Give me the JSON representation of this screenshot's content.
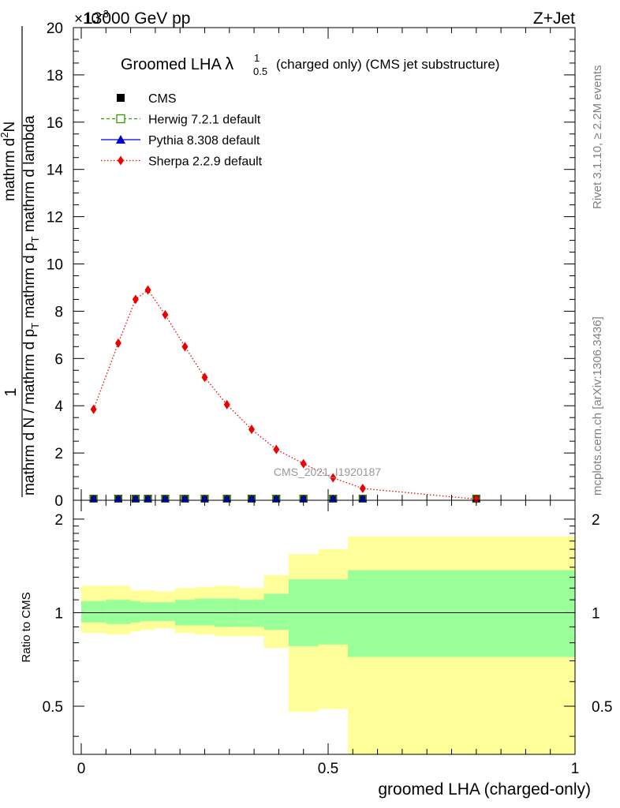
{
  "header": {
    "energy_label": "13000 GeV pp",
    "process_label": "Z+Jet",
    "exponent_label": "×10",
    "exponent_sup": "-3"
  },
  "side_labels": {
    "rivet": "Rivet 3.1.10, ≥ 2.2M events",
    "mcplots": "mcplots.cern.ch [arXiv:1306.3436]"
  },
  "main_plot": {
    "title_main": "Groomed LHA ",
    "title_symbol": "λ",
    "title_sup": "1",
    "title_sub": "0.5",
    "title_tail": " (charged only) (CMS jet substructure)",
    "ylabel_fraction_top": "1",
    "ylabel_fraction_bottom": "mathrm d N / mathrm d p",
    "ylabel_sub_T": "T",
    "ylabel_rest": " mathrm d p",
    "ylabel_rest_sub": "T",
    "ylabel_rest_tail": " mathrm d lambda",
    "ylabel_d2N": "mathrm d",
    "ylabel_d2N_sup": "2",
    "ylabel_d2N_tail": "N",
    "analysis_tag": "CMS_2021_I1920187"
  },
  "legend": {
    "items": [
      {
        "label": "CMS",
        "color": "#000000",
        "marker": "square"
      },
      {
        "label": "Herwig 7.2.1 default",
        "color": "#339900",
        "marker": "open-square"
      },
      {
        "label": "Pythia 8.308 default",
        "color": "#0000cc",
        "marker": "triangle"
      },
      {
        "label": "Sherpa 2.2.9 default",
        "color": "#ee0000",
        "marker": "diamond"
      }
    ]
  },
  "ratio_plot": {
    "ylabel": "Ratio to CMS",
    "xlabel": "groomed LHA (charged-only)"
  },
  "chart_data": {
    "type": "line",
    "x_edges": [
      0.0,
      0.05,
      0.1,
      0.12,
      0.15,
      0.19,
      0.23,
      0.27,
      0.32,
      0.37,
      0.42,
      0.48,
      0.54,
      1.0
    ],
    "x": [
      0.025,
      0.075,
      0.11,
      0.135,
      0.17,
      0.21,
      0.25,
      0.295,
      0.345,
      0.395,
      0.45,
      0.51,
      0.57,
      0.8
    ],
    "series": [
      {
        "name": "CMS",
        "values": [
          0.002,
          0.003,
          0.004,
          0.004,
          0.004,
          0.003,
          0.003,
          0.002,
          0.002,
          0.001,
          0.001,
          0.0005,
          0.0003,
          5e-05
        ]
      },
      {
        "name": "Herwig 7.2.1 default",
        "values": [
          0.002,
          0.003,
          0.004,
          0.004,
          0.004,
          0.003,
          0.003,
          0.002,
          0.002,
          0.001,
          0.001,
          0.0005,
          0.0003,
          5e-05
        ]
      },
      {
        "name": "Pythia 8.308 default",
        "values": [
          0.002,
          0.003,
          0.004,
          0.004,
          0.004,
          0.003,
          0.003,
          0.002,
          0.002,
          0.001,
          0.001,
          0.0005,
          0.0003,
          5e-05
        ]
      },
      {
        "name": "Sherpa 2.2.9 default",
        "values": [
          3.85,
          6.65,
          8.5,
          8.9,
          7.85,
          6.5,
          5.2,
          4.05,
          3.0,
          2.15,
          1.55,
          0.95,
          0.5,
          0.05
        ]
      }
    ],
    "main_ylim": [
      0,
      20
    ],
    "main_yticks": [
      0,
      2,
      4,
      6,
      8,
      10,
      12,
      14,
      16,
      18,
      20
    ],
    "ratio": {
      "ylim": [
        0.35,
        2.3
      ],
      "yticks": [
        0.5,
        1,
        2
      ],
      "band_outer_lo": [
        0.86,
        0.85,
        0.87,
        0.88,
        0.89,
        0.86,
        0.85,
        0.84,
        0.84,
        0.77,
        0.48,
        0.49,
        0.35,
        0.35
      ],
      "band_outer_hi": [
        1.22,
        1.22,
        1.18,
        1.18,
        1.17,
        1.2,
        1.21,
        1.22,
        1.2,
        1.32,
        1.54,
        1.6,
        1.76,
        1.76
      ],
      "band_inner_lo": [
        0.93,
        0.92,
        0.93,
        0.94,
        0.94,
        0.91,
        0.91,
        0.9,
        0.9,
        0.88,
        0.78,
        0.79,
        0.72,
        0.72
      ],
      "band_inner_hi": [
        1.09,
        1.1,
        1.09,
        1.08,
        1.08,
        1.1,
        1.11,
        1.11,
        1.1,
        1.15,
        1.28,
        1.28,
        1.37,
        1.37
      ]
    },
    "xlim": [
      0,
      1
    ],
    "xticks": [
      0,
      0.5,
      1
    ],
    "xtick_labels": [
      "0",
      "0.5",
      "1"
    ],
    "grid": false,
    "legend_position": "top-left"
  }
}
